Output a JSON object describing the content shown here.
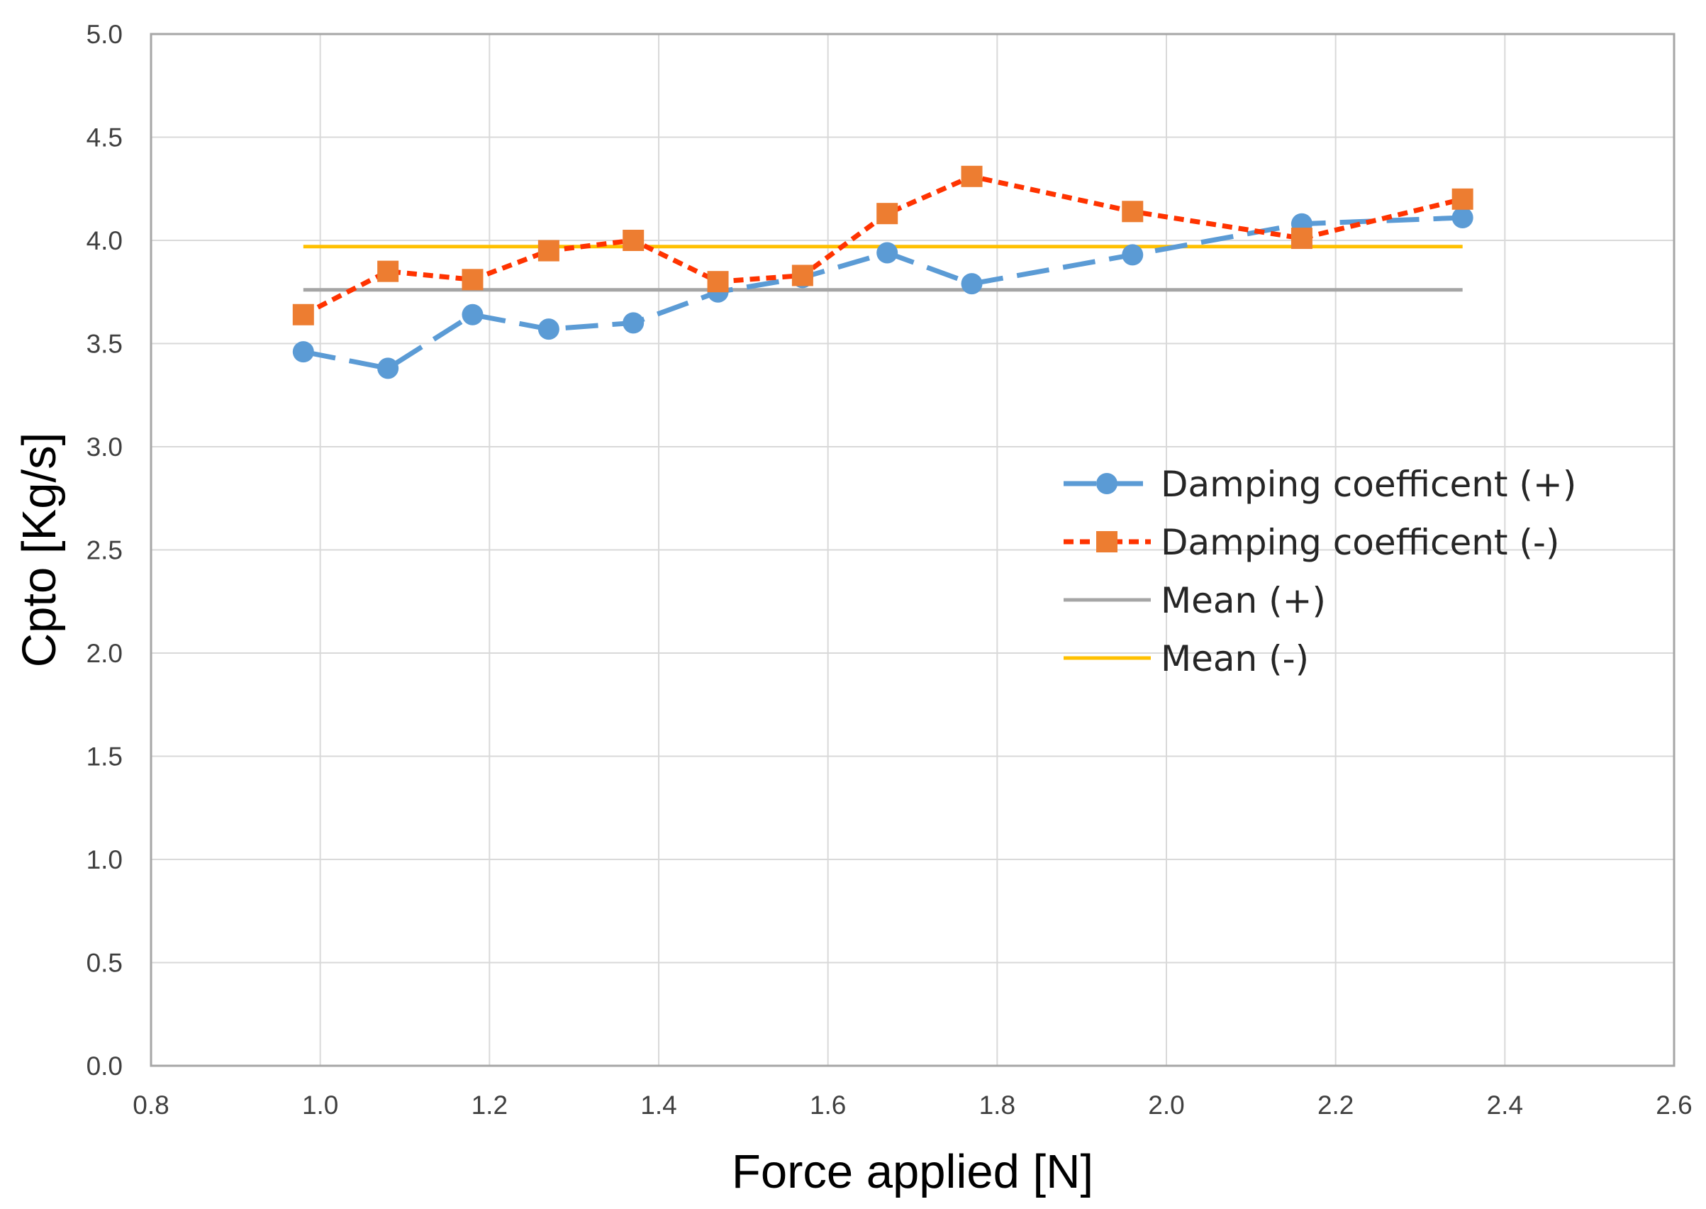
{
  "chart_data": {
    "type": "line",
    "title": "",
    "xlabel": "Force applied [N]",
    "ylabel": "Cpto [Kg/s]",
    "xlim": [
      0.8,
      2.6
    ],
    "ylim": [
      0.0,
      5.0
    ],
    "xticks": [
      "0.8",
      "1.0",
      "1.2",
      "1.4",
      "1.6",
      "1.8",
      "2.0",
      "2.2",
      "2.4",
      "2.6"
    ],
    "yticks": [
      "0.0",
      "0.5",
      "1.0",
      "1.5",
      "2.0",
      "2.5",
      "3.0",
      "3.5",
      "4.0",
      "4.5",
      "5.0"
    ],
    "grid": true,
    "legend_position": "right",
    "series": [
      {
        "name": "Damping coefficent (+)",
        "color": "#5B9BD5",
        "line_style": "long-dash",
        "marker": "circle",
        "x": [
          0.98,
          1.08,
          1.18,
          1.27,
          1.37,
          1.47,
          1.57,
          1.67,
          1.77,
          1.96,
          2.16,
          2.35
        ],
        "y": [
          3.46,
          3.38,
          3.64,
          3.57,
          3.6,
          3.75,
          3.82,
          3.94,
          3.79,
          3.93,
          4.08,
          4.11
        ]
      },
      {
        "name": "Damping coefficent (-)",
        "color": "#ED7D31",
        "line_color": "#FF3300",
        "line_style": "short-dash",
        "marker": "square",
        "x": [
          0.98,
          1.08,
          1.18,
          1.27,
          1.37,
          1.47,
          1.57,
          1.67,
          1.77,
          1.96,
          2.16,
          2.35
        ],
        "y": [
          3.64,
          3.85,
          3.81,
          3.95,
          4.0,
          3.8,
          3.83,
          4.13,
          4.31,
          4.14,
          4.01,
          4.2
        ]
      },
      {
        "name": "Mean (+)",
        "color": "#A5A5A5",
        "line_style": "solid",
        "marker": "none",
        "x": [
          0.98,
          2.35
        ],
        "y": [
          3.76,
          3.76
        ]
      },
      {
        "name": "Mean (-)",
        "color": "#FFC000",
        "line_style": "solid",
        "marker": "none",
        "x": [
          0.98,
          2.35
        ],
        "y": [
          3.97,
          3.97
        ]
      }
    ]
  }
}
